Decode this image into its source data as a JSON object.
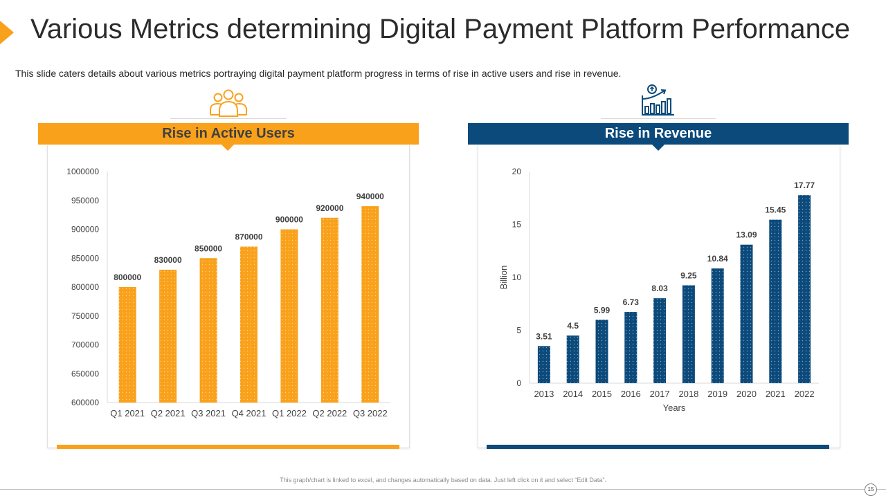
{
  "header": {
    "title": "Various Metrics determining Digital Payment Platform Performance",
    "subtitle": "This slide caters details about various metrics portraying digital payment platform progress in terms of rise in active users and rise in revenue."
  },
  "colors": {
    "users_accent": "#F9A11B",
    "users_header_text": "#404040",
    "revenue_accent": "#0B4A7B",
    "revenue_header_text": "#ffffff",
    "axis_text": "#404040",
    "axis_line": "#d9d9d9"
  },
  "icons": {
    "users": "users-group-icon",
    "revenue": "revenue-growth-icon"
  },
  "cards": {
    "users": {
      "header": "Rise in Active Users"
    },
    "revenue": {
      "header": "Rise in Revenue"
    }
  },
  "chart_data": [
    {
      "type": "bar",
      "title": "Rise in Active Users",
      "categories": [
        "Q1 2021",
        "Q2 2021",
        "Q3 2021",
        "Q4 2021",
        "Q1 2022",
        "Q2 2022",
        "Q3 2022"
      ],
      "values": [
        800000,
        830000,
        850000,
        870000,
        900000,
        920000,
        940000
      ],
      "data_labels": [
        "800000",
        "830000",
        "850000",
        "870000",
        "900000",
        "920000",
        "940000"
      ],
      "yticks": [
        "1000000",
        "950000",
        "900000",
        "850000",
        "800000",
        "750000",
        "700000",
        "650000",
        "600000"
      ],
      "ylim": [
        600000,
        1000000
      ],
      "xlabel": "",
      "ylabel": "",
      "grid": false,
      "legend": "none"
    },
    {
      "type": "bar",
      "title": "Rise in Revenue",
      "categories": [
        "2013",
        "2014",
        "2015",
        "2016",
        "2017",
        "2018",
        "2019",
        "2020",
        "2021",
        "2022"
      ],
      "values": [
        3.51,
        4.5,
        5.99,
        6.73,
        8.03,
        9.25,
        10.84,
        13.09,
        15.45,
        17.77
      ],
      "data_labels": [
        "3.51",
        "4.5",
        "5.99",
        "6.73",
        "8.03",
        "9.25",
        "10.84",
        "13.09",
        "15.45",
        "17.77"
      ],
      "yticks": [
        "20",
        "15",
        "10",
        "5",
        "0"
      ],
      "ylim": [
        0,
        20
      ],
      "xlabel": "Years",
      "ylabel": "Billion",
      "grid": false,
      "legend": "none"
    }
  ],
  "footer": {
    "note": "This graph/chart is linked to excel, and changes automatically based on data. Just left click on it and select “Edit Data”.",
    "page_number": "15"
  }
}
